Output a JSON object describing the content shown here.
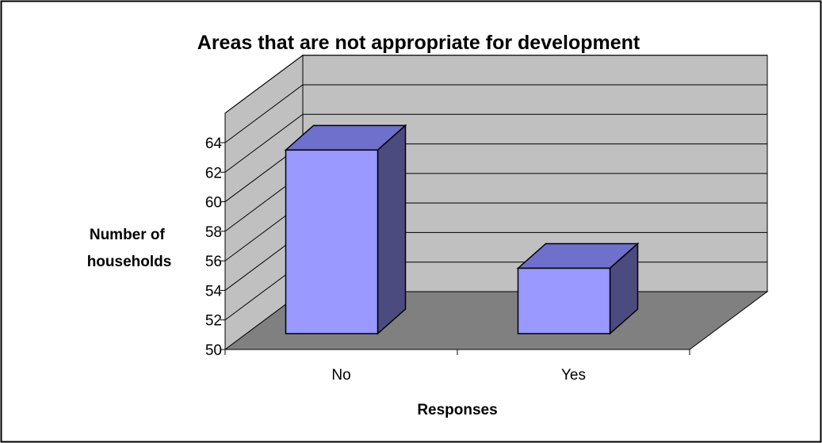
{
  "chart_data": {
    "type": "bar",
    "title": "Areas that are not appropriate for development",
    "xlabel": "Responses",
    "ylabel": [
      "Number of",
      "households"
    ],
    "categories": [
      "No",
      "Yes"
    ],
    "values": [
      63.5,
      55.5
    ],
    "ylim": [
      50,
      64
    ],
    "yticks": [
      "50",
      "52",
      "54",
      "56",
      "58",
      "60",
      "62",
      "64"
    ],
    "ystep": 2,
    "grid": true,
    "legend": "none",
    "three_d": true,
    "colors": {
      "bar_front": "#9999ff",
      "bar_top": "#6f6fcc",
      "bar_side": "#4b4b80",
      "back_wall": "#c0c0c0",
      "floor": "#808080",
      "gridline": "#000000"
    }
  }
}
